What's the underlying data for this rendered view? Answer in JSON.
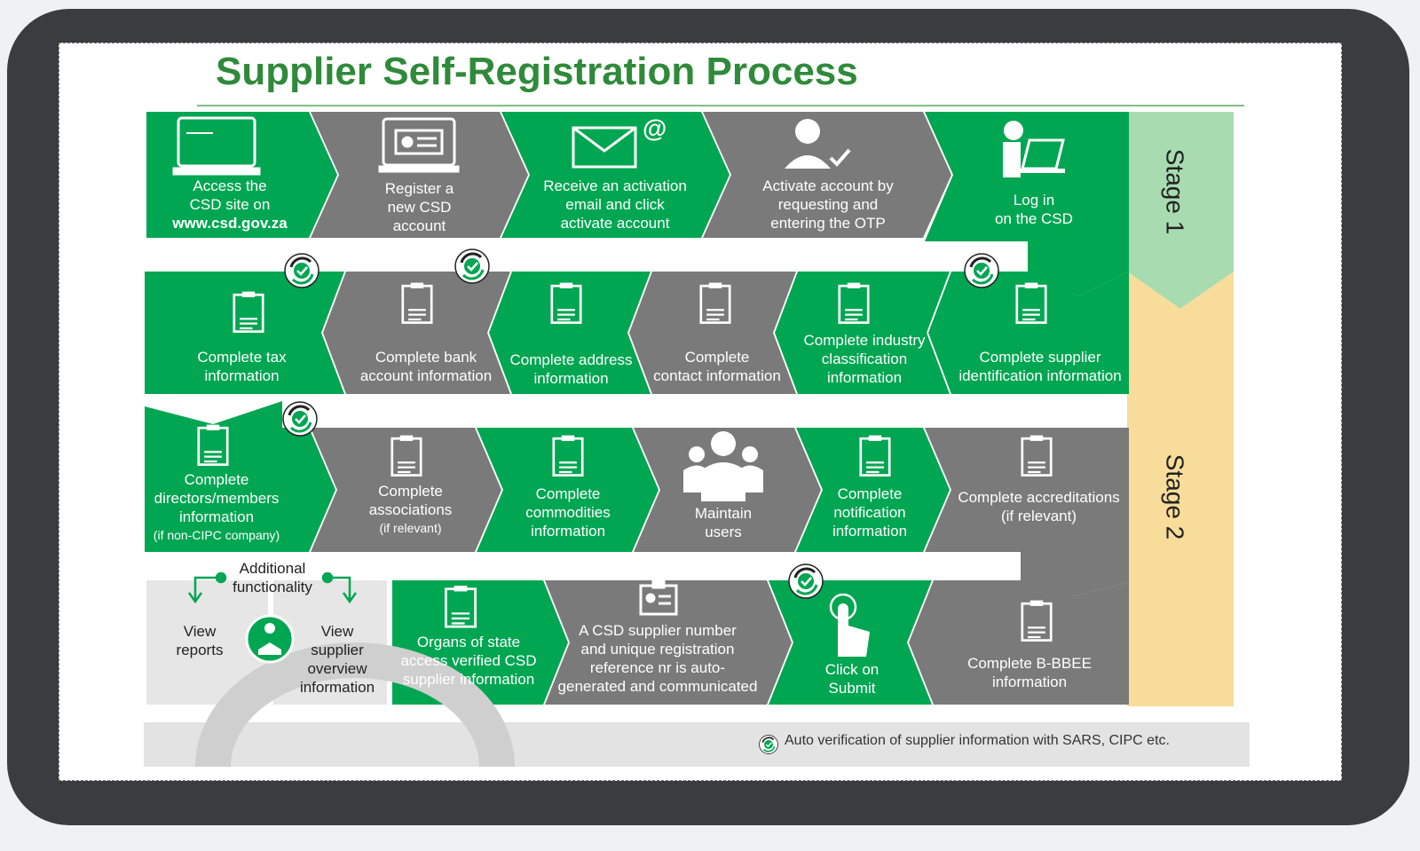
{
  "title": "Supplier Self-Registration Process",
  "colors": {
    "green": "#00a651",
    "grey": "#7a7a7a",
    "stage1": "#a8dcb0",
    "stage2": "#f8dc9a",
    "light": "#e6e6e6"
  },
  "stages": {
    "stage1": "Stage 1",
    "stage2": "Stage 2"
  },
  "row1": [
    {
      "icon": "laptop-icon",
      "text": "Access the\nCSD site on",
      "bold": "www.csd.gov.za"
    },
    {
      "icon": "id-card-monitor-icon",
      "text": "Register a\nnew CSD\naccount"
    },
    {
      "icon": "email-icon",
      "text": "Receive an activation\nemail and click\nactivate account"
    },
    {
      "icon": "user-check-icon",
      "text": "Activate account by\nrequesting and\nentering the OTP"
    },
    {
      "icon": "person-laptop-icon",
      "text": "Log in\non the CSD"
    }
  ],
  "row2": [
    {
      "icon": "tax-doc-icon",
      "text": "Complete tax\ninformation"
    },
    {
      "icon": "bank-doc-icon",
      "text": "Complete bank\naccount  information"
    },
    {
      "icon": "address-doc-icon",
      "text": "Complete address\ninformation"
    },
    {
      "icon": "contact-doc-icon",
      "text": "Complete\ncontact information"
    },
    {
      "icon": "industry-doc-icon",
      "text": "Complete industry\nclassification\ninformation"
    },
    {
      "icon": "supplier-doc-icon",
      "text": "Complete supplier\nidentification information"
    }
  ],
  "row3": [
    {
      "icon": "directors-doc-icon",
      "text": "Complete\ndirectors/members\ninformation",
      "small": "(if non-CIPC company)"
    },
    {
      "icon": "associations-doc-icon",
      "text": "Complete\nassociations",
      "small": "(if relevant)"
    },
    {
      "icon": "commodities-doc-icon",
      "text": "Complete\ncommodities\ninformation"
    },
    {
      "icon": "users-group-icon",
      "text": "Maintain\nusers"
    },
    {
      "icon": "notification-doc-icon",
      "text": "Complete\nnotification\ninformation"
    },
    {
      "icon": "bbbee-doc-icon",
      "text": "Complete accreditations\n(if relevant)"
    }
  ],
  "row4": [
    {
      "icon": "signed-doc-icon",
      "text": "Organs of state\naccess verified CSD\nsupplier information"
    },
    {
      "icon": "badge-icon",
      "text": "A CSD supplier number\nand unique registration\nreference nr is auto-\ngenerated and communicated"
    },
    {
      "icon": "click-hand-icon",
      "text": "Click on\nSubmit"
    },
    {
      "icon": "bbbee-info-doc-icon",
      "text": "Complete B-BBEE\ninformation"
    }
  ],
  "additional": {
    "heading": "Additional\nfunctionality",
    "left": "View\nreports",
    "right": "View\nsupplier\noverview\ninformation"
  },
  "footer": "Auto verification  of supplier information  with SARS, CIPC etc."
}
